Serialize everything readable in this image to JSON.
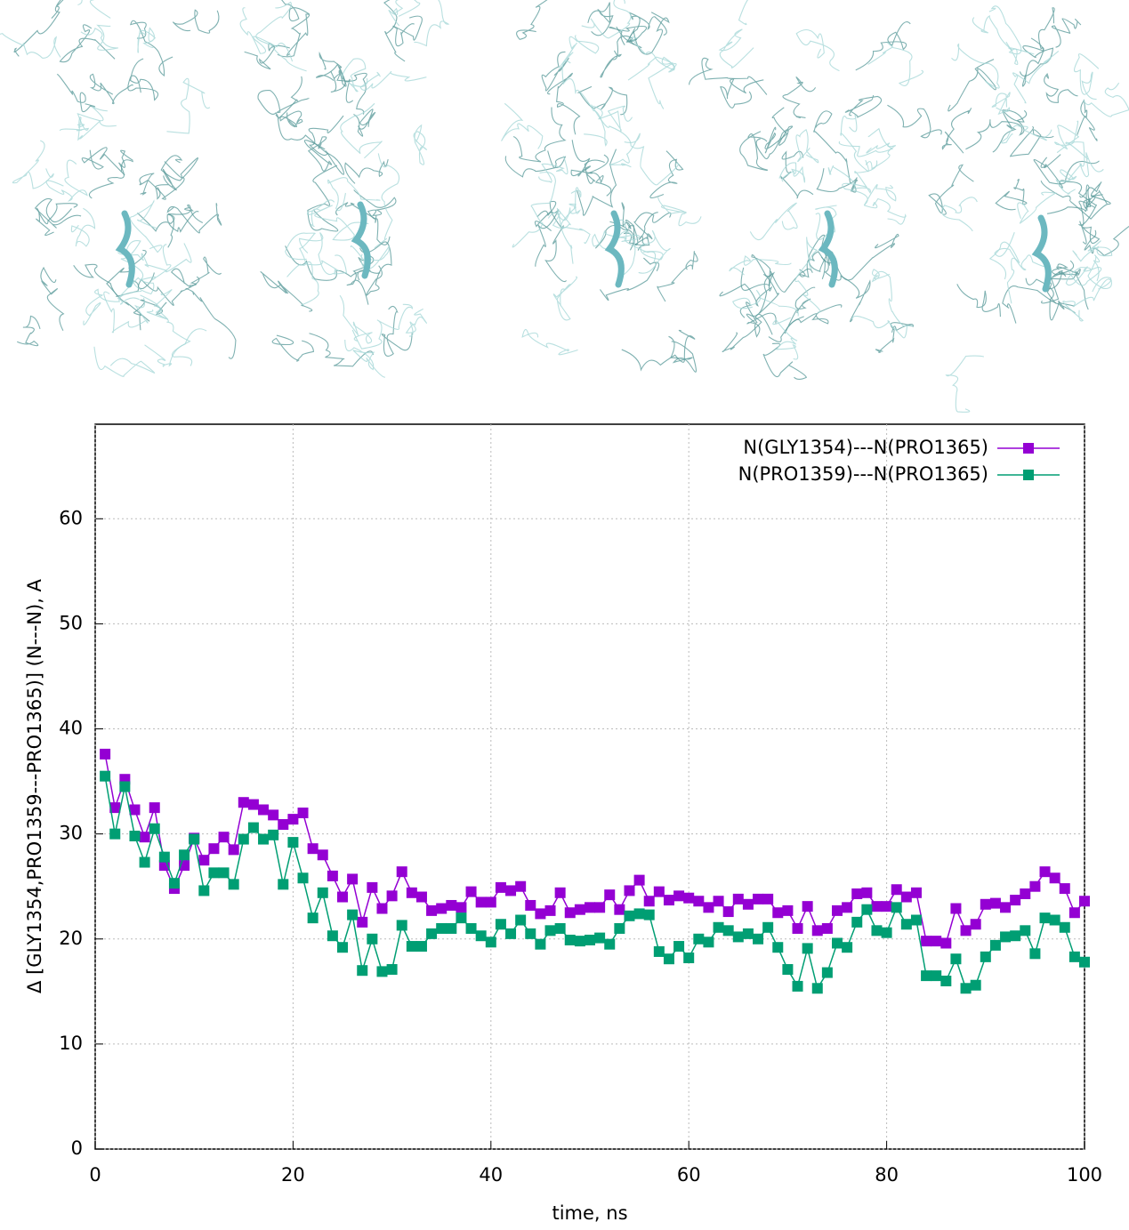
{
  "chart_data": {
    "type": "line",
    "x_label": "time, ns",
    "y_label": "Δ [GLY1354,PRO1359---PRO1365)] (N---N), A",
    "x": [
      1,
      2,
      3,
      4,
      5,
      6,
      7,
      8,
      9,
      10,
      11,
      12,
      13,
      14,
      15,
      16,
      17,
      18,
      19,
      20,
      21,
      22,
      23,
      24,
      25,
      26,
      27,
      28,
      29,
      30,
      31,
      32,
      33,
      34,
      35,
      36,
      37,
      38,
      39,
      40,
      41,
      42,
      43,
      44,
      45,
      46,
      47,
      48,
      49,
      50,
      51,
      52,
      53,
      54,
      55,
      56,
      57,
      58,
      59,
      60,
      61,
      62,
      63,
      64,
      65,
      66,
      67,
      68,
      69,
      70,
      71,
      72,
      73,
      74,
      75,
      76,
      77,
      78,
      79,
      80,
      81,
      82,
      83,
      84,
      85,
      86,
      87,
      88,
      89,
      90,
      91,
      92,
      93,
      94,
      95,
      96,
      97,
      98,
      99,
      100
    ],
    "series": [
      {
        "name": "N(GLY1354)---N(PRO1365)",
        "color": "#9400d3",
        "values": [
          37.6,
          32.5,
          35.2,
          32.3,
          29.7,
          32.5,
          27.0,
          24.8,
          27.0,
          29.6,
          27.5,
          28.6,
          29.7,
          28.5,
          33.0,
          32.8,
          32.3,
          31.8,
          30.9,
          31.4,
          32.0,
          28.6,
          28.0,
          26.0,
          24.0,
          25.7,
          21.6,
          24.9,
          22.9,
          24.1,
          26.4,
          24.4,
          24.0,
          22.7,
          22.9,
          23.2,
          23.0,
          24.5,
          23.5,
          23.5,
          24.9,
          24.6,
          25.0,
          23.2,
          22.4,
          22.7,
          24.4,
          22.5,
          22.8,
          23.0,
          23.0,
          24.2,
          22.8,
          24.6,
          25.6,
          23.6,
          24.5,
          23.7,
          24.1,
          23.9,
          23.6,
          23.0,
          23.6,
          22.6,
          23.8,
          23.3,
          23.8,
          23.8,
          22.5,
          22.7,
          21.0,
          23.1,
          20.8,
          21.0,
          22.7,
          23.0,
          24.3,
          24.4,
          23.1,
          23.1,
          24.7,
          24.0,
          24.4,
          19.8,
          19.8,
          19.6,
          22.9,
          20.8,
          21.4,
          23.3,
          23.4,
          23.0,
          23.7,
          24.3,
          25.0,
          26.4,
          25.8,
          24.8,
          22.5,
          23.6
        ]
      },
      {
        "name": "N(PRO1359)---N(PRO1365)",
        "color": "#009e73",
        "values": [
          35.5,
          30.0,
          34.5,
          29.8,
          27.3,
          30.5,
          27.8,
          25.3,
          28.0,
          29.5,
          24.6,
          26.3,
          26.3,
          25.2,
          29.5,
          30.6,
          29.5,
          29.9,
          25.2,
          29.2,
          25.8,
          22.0,
          24.4,
          20.3,
          19.2,
          22.3,
          17.0,
          20.0,
          16.9,
          17.1,
          21.3,
          19.3,
          19.3,
          20.5,
          21.0,
          21.0,
          22.0,
          21.0,
          20.3,
          19.7,
          21.4,
          20.5,
          21.8,
          20.5,
          19.5,
          20.8,
          21.0,
          19.9,
          19.8,
          19.9,
          20.1,
          19.5,
          21.0,
          22.2,
          22.4,
          22.3,
          18.8,
          18.1,
          19.3,
          18.2,
          20.0,
          19.7,
          21.1,
          20.8,
          20.2,
          20.5,
          20.0,
          21.1,
          19.2,
          17.1,
          15.5,
          19.1,
          15.3,
          16.8,
          19.6,
          19.2,
          21.6,
          22.8,
          20.8,
          20.6,
          23.0,
          21.4,
          21.8,
          16.5,
          16.5,
          16.0,
          18.1,
          15.3,
          15.6,
          18.3,
          19.4,
          20.2,
          20.3,
          20.8,
          18.6,
          22.0,
          21.8,
          21.1,
          18.3,
          17.8
        ]
      }
    ],
    "xlim": [
      0,
      100
    ],
    "xticks": [
      0,
      20,
      40,
      60,
      80,
      100
    ],
    "ylim": [
      0,
      69
    ],
    "yticks": [
      0,
      10,
      20,
      30,
      40,
      50,
      60
    ],
    "grid": true,
    "legend": "top-right"
  }
}
